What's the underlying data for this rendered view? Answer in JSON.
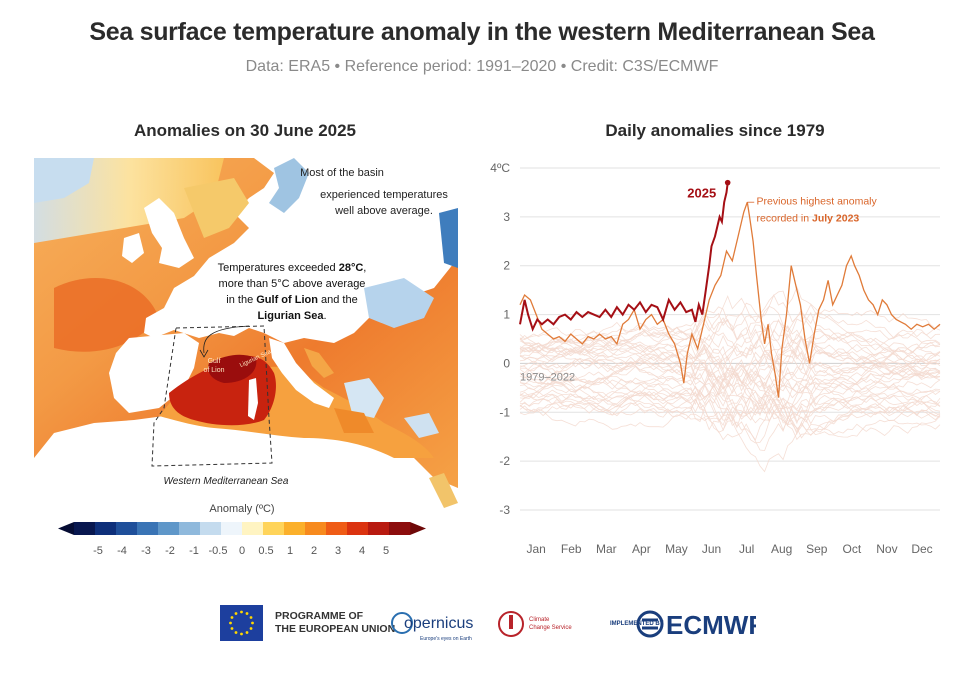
{
  "header": {
    "title": "Sea surface temperature anomaly in the western Mediterranean Sea",
    "subtitle": "Data: ERA5 • Reference period: 1991–2020 • Credit: C3S/ECMWF"
  },
  "map": {
    "title": "Anomalies on 30 June 2025",
    "annotation_basin": [
      "Most of the basin",
      "experienced temperatures",
      "well above average."
    ],
    "annotation_hot": {
      "line1": "Temperatures exceeded ",
      "line1_bold": "28°C",
      "line1_end": ",",
      "line2": "more than 5°C above average",
      "line3": "in the ",
      "line3_bold": "Gulf of Lion",
      "line3_end": " and the",
      "line4_bold": "Ligurian Sea",
      "line4_end": "."
    },
    "label_gulf": [
      "Gulf",
      "of Lion"
    ],
    "label_ligurian": "Ligurian Sea",
    "region_label": "Western Mediterranean Sea",
    "colorbar": {
      "title": "Anomaly (ºC)",
      "ticks": [
        "-5",
        "-4",
        "-3",
        "-2",
        "-1",
        "-0.5",
        "0",
        "0.5",
        "1",
        "2",
        "3",
        "4",
        "5"
      ],
      "colors": [
        "#08174f",
        "#0e2f7a",
        "#1f4f9a",
        "#3a74b5",
        "#5f97c9",
        "#8fb9dc",
        "#c4dbee",
        "#eef5fb",
        "#fff4c2",
        "#ffd45a",
        "#fbb02b",
        "#f78a1e",
        "#ef5c16",
        "#db3310",
        "#b81a10",
        "#8c0d0d"
      ]
    }
  },
  "chart_data": {
    "type": "line",
    "title": "Daily anomalies since 1979",
    "ylim": [
      -3,
      4
    ],
    "yticks": [
      "-3",
      "-2",
      "-1",
      "0",
      "1",
      "2",
      "3",
      "4ºC"
    ],
    "months": [
      "Jan",
      "Feb",
      "Mar",
      "Apr",
      "May",
      "Jun",
      "Jul",
      "Aug",
      "Sep",
      "Oct",
      "Nov",
      "Dec"
    ],
    "background_label": "1979–2022",
    "series": [
      {
        "name": "2025",
        "color": "#a50f15",
        "points": [
          [
            1,
            0.8
          ],
          [
            5,
            1.3
          ],
          [
            8,
            1.0
          ],
          [
            12,
            0.7
          ],
          [
            16,
            0.9
          ],
          [
            20,
            0.8
          ],
          [
            25,
            0.9
          ],
          [
            30,
            0.8
          ],
          [
            35,
            0.95
          ],
          [
            40,
            1.0
          ],
          [
            45,
            0.9
          ],
          [
            50,
            1.05
          ],
          [
            55,
            0.95
          ],
          [
            60,
            1.05
          ],
          [
            65,
            1.0
          ],
          [
            70,
            0.95
          ],
          [
            75,
            1.1
          ],
          [
            80,
            0.95
          ],
          [
            85,
            1.15
          ],
          [
            90,
            1.0
          ],
          [
            95,
            1.2
          ],
          [
            100,
            1.1
          ],
          [
            105,
            1.25
          ],
          [
            110,
            1.05
          ],
          [
            115,
            1.2
          ],
          [
            120,
            1.15
          ],
          [
            125,
            0.9
          ],
          [
            130,
            1.3
          ],
          [
            135,
            1.1
          ],
          [
            140,
            1.25
          ],
          [
            145,
            1.05
          ],
          [
            150,
            1.1
          ],
          [
            153,
            0.85
          ],
          [
            156,
            1.2
          ],
          [
            159,
            1.0
          ],
          [
            162,
            1.5
          ],
          [
            165,
            2.0
          ],
          [
            167,
            2.4
          ],
          [
            170,
            2.6
          ],
          [
            172,
            2.8
          ],
          [
            174,
            3.0
          ],
          [
            176,
            2.9
          ],
          [
            178,
            3.3
          ],
          [
            180,
            3.5
          ],
          [
            181,
            3.7
          ]
        ]
      },
      {
        "name": "2023",
        "color": "#e07b39",
        "points": [
          [
            1,
            1.2
          ],
          [
            5,
            1.4
          ],
          [
            10,
            1.3
          ],
          [
            15,
            1.0
          ],
          [
            20,
            0.7
          ],
          [
            25,
            0.6
          ],
          [
            30,
            0.5
          ],
          [
            35,
            0.55
          ],
          [
            40,
            0.45
          ],
          [
            45,
            0.6
          ],
          [
            50,
            0.5
          ],
          [
            55,
            0.4
          ],
          [
            60,
            0.55
          ],
          [
            65,
            0.5
          ],
          [
            70,
            0.6
          ],
          [
            75,
            0.5
          ],
          [
            80,
            0.55
          ],
          [
            85,
            0.4
          ],
          [
            90,
            0.8
          ],
          [
            95,
            0.9
          ],
          [
            100,
            1.1
          ],
          [
            105,
            0.7
          ],
          [
            110,
            0.9
          ],
          [
            115,
            1.0
          ],
          [
            120,
            0.8
          ],
          [
            125,
            0.9
          ],
          [
            130,
            0.6
          ],
          [
            135,
            0.4
          ],
          [
            140,
            0.0
          ],
          [
            143,
            -0.4
          ],
          [
            146,
            0.2
          ],
          [
            150,
            0.6
          ],
          [
            155,
            0.3
          ],
          [
            160,
            0.8
          ],
          [
            165,
            1.3
          ],
          [
            170,
            1.6
          ],
          [
            175,
            1.8
          ],
          [
            180,
            2.3
          ],
          [
            185,
            2.1
          ],
          [
            190,
            2.6
          ],
          [
            195,
            3.1
          ],
          [
            198,
            3.3
          ],
          [
            200,
            3.0
          ],
          [
            203,
            2.5
          ],
          [
            206,
            1.8
          ],
          [
            210,
            0.9
          ],
          [
            213,
            0.4
          ],
          [
            216,
            0.8
          ],
          [
            219,
            0.2
          ],
          [
            222,
            -0.2
          ],
          [
            225,
            -0.7
          ],
          [
            228,
            0.3
          ],
          [
            232,
            1.0
          ],
          [
            236,
            2.0
          ],
          [
            240,
            1.6
          ],
          [
            244,
            1.2
          ],
          [
            248,
            0.5
          ],
          [
            252,
            0.0
          ],
          [
            256,
            0.6
          ],
          [
            260,
            1.1
          ],
          [
            264,
            1.3
          ],
          [
            268,
            1.7
          ],
          [
            272,
            1.2
          ],
          [
            276,
            1.4
          ],
          [
            280,
            1.6
          ],
          [
            284,
            2.0
          ],
          [
            288,
            2.2
          ],
          [
            291,
            2.0
          ],
          [
            295,
            1.8
          ],
          [
            299,
            1.5
          ],
          [
            303,
            1.3
          ],
          [
            307,
            1.2
          ],
          [
            311,
            1.0
          ],
          [
            315,
            1.3
          ],
          [
            319,
            1.2
          ],
          [
            323,
            1.0
          ],
          [
            327,
            0.9
          ],
          [
            331,
            0.85
          ],
          [
            335,
            0.8
          ],
          [
            340,
            0.7
          ],
          [
            345,
            0.8
          ],
          [
            350,
            0.75
          ],
          [
            355,
            0.8
          ],
          [
            360,
            0.7
          ],
          [
            365,
            0.8
          ]
        ]
      }
    ],
    "annotations": {
      "label_2025": "2025",
      "prev_line1": "Previous highest anomaly",
      "prev_line2": "recorded in ",
      "prev_line2_bold": "July 2023"
    }
  },
  "footer": {
    "eu_line1": "PROGRAMME OF",
    "eu_line2": "THE EUROPEAN UNION",
    "copernicus": "opernicus",
    "copernicus_tag": "Europe's eyes on Earth",
    "c3s_line1": "Climate",
    "c3s_line2": "Change Service",
    "implemented": "IMPLEMENTED BY",
    "ecmwf": "ECMWF"
  }
}
